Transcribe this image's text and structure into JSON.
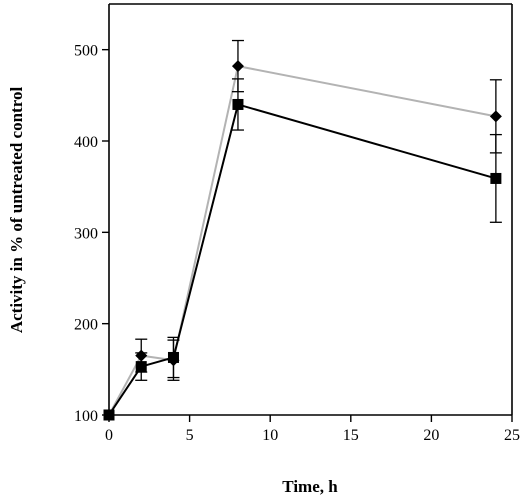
{
  "chart_data": {
    "type": "line",
    "title": "",
    "xlabel": "Time, h",
    "ylabel": "Activity in % of untreated control",
    "xlim": [
      0,
      25
    ],
    "ylim": [
      100,
      550
    ],
    "xticks": [
      0,
      5,
      10,
      15,
      20,
      25
    ],
    "yticks": [
      100,
      200,
      300,
      400,
      500
    ],
    "grid": false,
    "legend": "none",
    "series": [
      {
        "marker": "diamond",
        "color": "#b3b3b3",
        "x": [
          0,
          2,
          4,
          8,
          24
        ],
        "y": [
          100,
          165,
          160,
          482,
          427
        ],
        "err": [
          0,
          18,
          22,
          28,
          40
        ]
      },
      {
        "marker": "square",
        "color": "#000000",
        "x": [
          0,
          2,
          4,
          8,
          24
        ],
        "y": [
          100,
          153,
          163,
          440,
          359
        ],
        "err": [
          0,
          15,
          22,
          28,
          48
        ]
      }
    ]
  }
}
